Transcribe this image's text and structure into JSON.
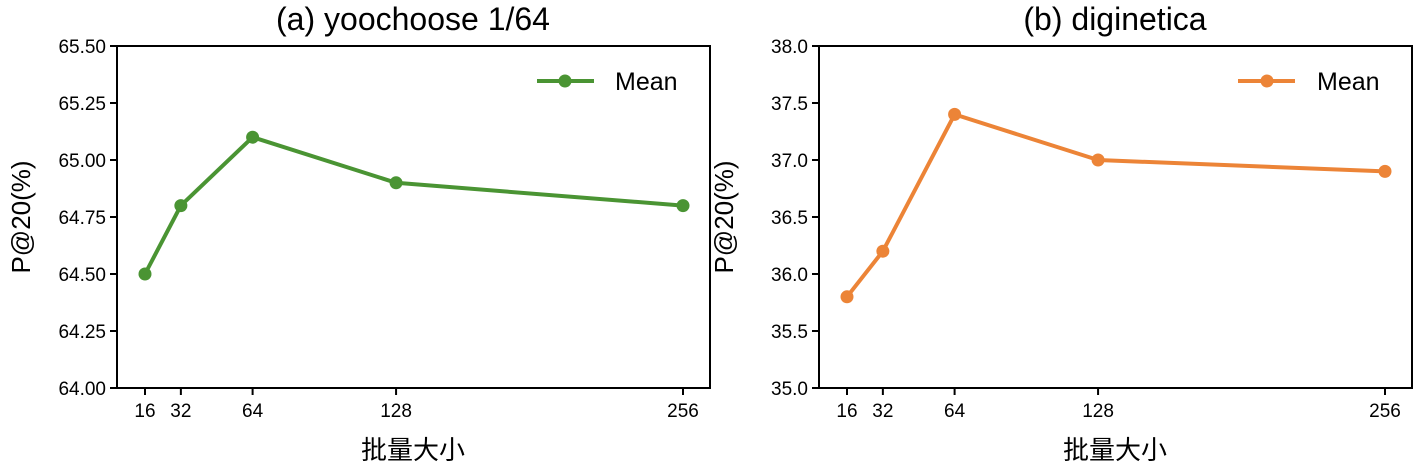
{
  "chart_data": [
    {
      "type": "line",
      "title": "(a) yoochoose 1/64",
      "xlabel": "批量大小",
      "ylabel": "P@20(%)",
      "x": [
        16,
        32,
        64,
        128,
        256
      ],
      "x_tick_labels": [
        "16",
        "32",
        "64",
        "128",
        "256"
      ],
      "y_tick_labels": [
        "64.00",
        "64.25",
        "64.50",
        "64.75",
        "65.00",
        "65.25",
        "65.50"
      ],
      "ylim": [
        64.0,
        65.5
      ],
      "series": [
        {
          "name": "Mean",
          "color": "#4a9433",
          "values": [
            64.5,
            64.8,
            65.1,
            64.9,
            64.8
          ]
        }
      ],
      "legend": "top-right",
      "grid": false
    },
    {
      "type": "line",
      "title": "(b) diginetica",
      "xlabel": "批量大小",
      "ylabel": "P@20(%)",
      "x": [
        16,
        32,
        64,
        128,
        256
      ],
      "x_tick_labels": [
        "16",
        "32",
        "64",
        "128",
        "256"
      ],
      "y_tick_labels": [
        "35.0",
        "35.5",
        "36.0",
        "36.5",
        "37.0",
        "37.5",
        "38.0"
      ],
      "ylim": [
        35.0,
        38.0
      ],
      "series": [
        {
          "name": "Mean",
          "color": "#ec8437",
          "values": [
            35.8,
            36.2,
            37.4,
            37.0,
            36.9
          ]
        }
      ],
      "legend": "top-right",
      "grid": false
    }
  ]
}
